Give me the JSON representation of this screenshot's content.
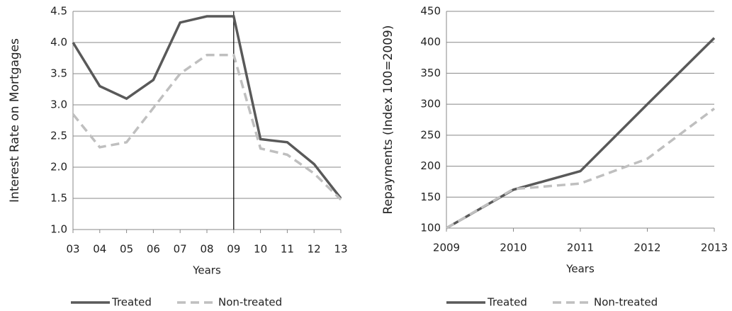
{
  "chart_data": [
    {
      "type": "line",
      "x_label": "Years",
      "y_label": "Interest Rate on Mortgages",
      "categories": [
        "03",
        "04",
        "05",
        "06",
        "07",
        "08",
        "09",
        "10",
        "11",
        "12",
        "13"
      ],
      "series": [
        {
          "name": "Treated",
          "color": "#595959",
          "dashed": false,
          "values": [
            4.0,
            3.3,
            3.1,
            3.4,
            4.32,
            4.42,
            4.42,
            2.45,
            2.4,
            2.05,
            1.5
          ]
        },
        {
          "name": "Non-treated",
          "color": "#bfbfbf",
          "dashed": true,
          "values": [
            2.85,
            2.32,
            2.4,
            2.95,
            3.5,
            3.8,
            3.8,
            2.3,
            2.2,
            1.9,
            1.48
          ]
        }
      ],
      "ylim": [
        1.0,
        4.5
      ],
      "yticks": [
        {
          "value": 1,
          "label": "1.0"
        },
        1.5,
        {
          "value": 2,
          "label": "2.0"
        },
        2.5,
        {
          "value": 3,
          "label": "3.0"
        },
        3.5,
        {
          "value": 4,
          "label": "4.0"
        },
        4.5
      ],
      "grid": true,
      "vline": "09",
      "legend": "bottom"
    },
    {
      "type": "line",
      "x_label": "Years",
      "y_label": "Repayments (Index 100=2009)",
      "categories": [
        "2009",
        "2010",
        "2011",
        "2012",
        "2013"
      ],
      "series": [
        {
          "name": "Treated",
          "color": "#595959",
          "dashed": false,
          "values": [
            100,
            162,
            192,
            300,
            407
          ]
        },
        {
          "name": "Non-treated",
          "color": "#bfbfbf",
          "dashed": true,
          "values": [
            100,
            163,
            172,
            212,
            293
          ]
        }
      ],
      "ylim": [
        100,
        450
      ],
      "yticks": [
        100,
        150,
        200,
        250,
        300,
        350,
        400,
        450
      ],
      "grid": true,
      "legend": "bottom"
    }
  ]
}
